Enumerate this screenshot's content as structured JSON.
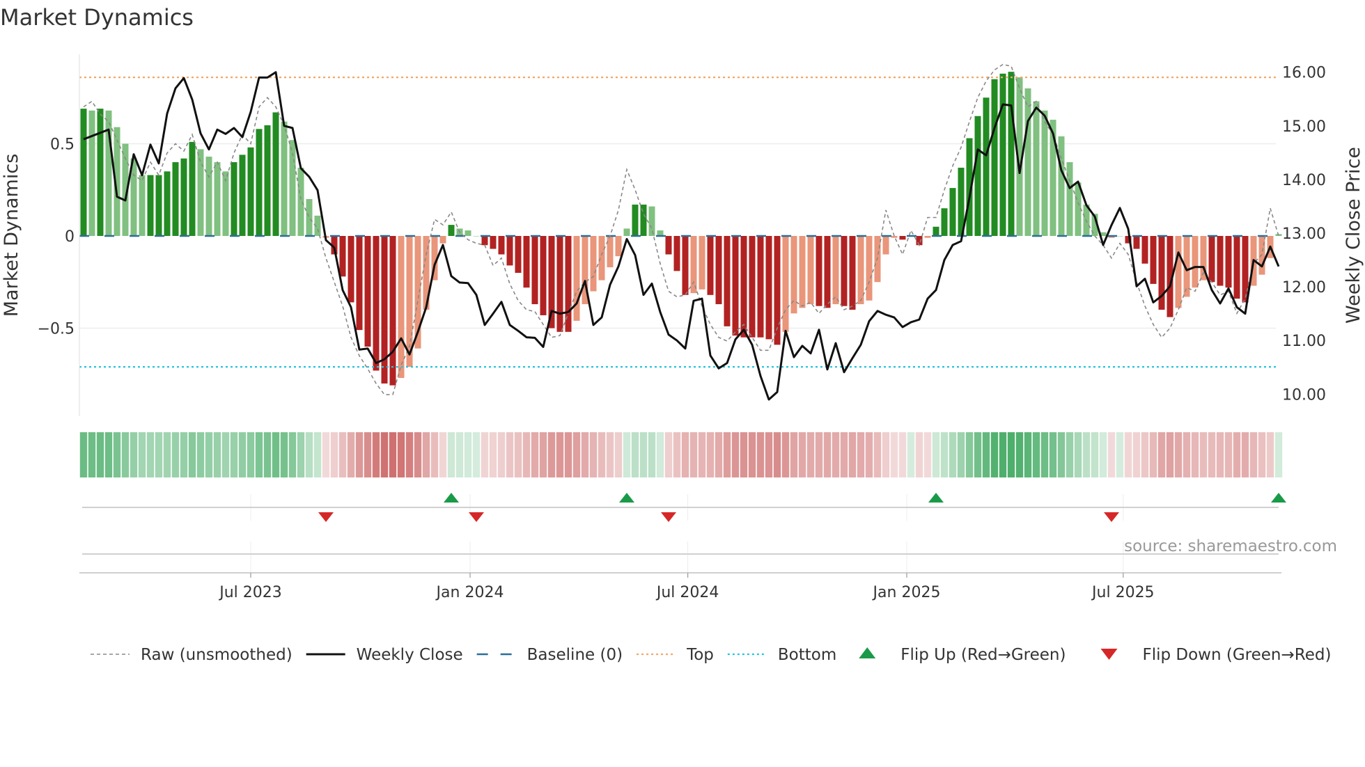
{
  "title": "Market Dynamics",
  "source": "source: sharemaestro.com",
  "colors": {
    "green_dark": "#228b22",
    "green_light": "#80c080",
    "red_dark": "#b22222",
    "red_light": "#e9967a",
    "heat_green": "#2ca050",
    "heat_red": "#c24a4a",
    "raw": "#888888",
    "close": "#111111",
    "baseline": "#2b6e99",
    "top": "#f0a868",
    "bottom": "#27c4dc",
    "flip_up": "#1a9a48",
    "flip_down": "#d62728"
  },
  "chart_data": {
    "type": "bar",
    "title": "Market Dynamics",
    "ylabel": "Market Dynamics",
    "y2label": "Weekly Close Price",
    "ylim": [
      -1.0,
      0.97
    ],
    "y2lim": [
      9.5,
      16.35
    ],
    "yticks": [
      {
        "v": 0.5,
        "label": "0.5"
      },
      {
        "v": 0,
        "label": "0"
      },
      {
        "v": -0.5,
        "label": "−0.5"
      }
    ],
    "y2ticks": [
      {
        "v": 16,
        "label": "16.00"
      },
      {
        "v": 15,
        "label": "15.00"
      },
      {
        "v": 14,
        "label": "14.00"
      },
      {
        "v": 13,
        "label": "13.00"
      },
      {
        "v": 12,
        "label": "12.00"
      },
      {
        "v": 11,
        "label": "11.00"
      },
      {
        "v": 10,
        "label": "10.00"
      }
    ],
    "xticks": [
      {
        "week": 20,
        "label": "Jul 2023"
      },
      {
        "week": 46.25,
        "label": "Jan 2024"
      },
      {
        "week": 72.3,
        "label": "Jul 2024"
      },
      {
        "week": 98.5,
        "label": "Jan 2025"
      },
      {
        "week": 124.4,
        "label": "Jul 2025"
      }
    ],
    "top_level": 0.86,
    "bottom_level": -0.71,
    "baseline": 0,
    "grid": true,
    "dynamics": [
      0.69,
      0.68,
      0.69,
      0.68,
      0.59,
      0.5,
      0.42,
      0.33,
      0.33,
      0.33,
      0.35,
      0.4,
      0.42,
      0.51,
      0.47,
      0.43,
      0.4,
      0.35,
      0.4,
      0.44,
      0.48,
      0.58,
      0.6,
      0.67,
      0.62,
      0.52,
      0.37,
      0.2,
      0.11,
      -0.01,
      -0.1,
      -0.22,
      -0.36,
      -0.51,
      -0.6,
      -0.73,
      -0.8,
      -0.81,
      -0.77,
      -0.71,
      -0.61,
      -0.4,
      -0.24,
      -0.04,
      0.06,
      0.04,
      0.03,
      0.0,
      -0.05,
      -0.07,
      -0.1,
      -0.16,
      -0.2,
      -0.28,
      -0.37,
      -0.43,
      -0.5,
      -0.52,
      -0.52,
      -0.46,
      -0.37,
      -0.3,
      -0.24,
      -0.17,
      -0.11,
      0.04,
      0.17,
      0.17,
      0.16,
      0.03,
      -0.1,
      -0.19,
      -0.32,
      -0.31,
      -0.29,
      -0.32,
      -0.37,
      -0.49,
      -0.54,
      -0.55,
      -0.55,
      -0.55,
      -0.56,
      -0.59,
      -0.52,
      -0.42,
      -0.39,
      -0.37,
      -0.38,
      -0.39,
      -0.37,
      -0.38,
      -0.4,
      -0.37,
      -0.35,
      -0.25,
      -0.1,
      -0.01,
      -0.02,
      0.0,
      -0.05,
      -0.01,
      0.05,
      0.15,
      0.26,
      0.37,
      0.53,
      0.65,
      0.75,
      0.85,
      0.88,
      0.89,
      0.86,
      0.8,
      0.73,
      0.68,
      0.63,
      0.54,
      0.4,
      0.29,
      0.17,
      0.12,
      0.02,
      -0.01,
      0.0,
      -0.04,
      -0.07,
      -0.15,
      -0.26,
      -0.4,
      -0.44,
      -0.39,
      -0.33,
      -0.28,
      -0.24,
      -0.25,
      -0.27,
      -0.28,
      -0.34,
      -0.36,
      -0.27,
      -0.21,
      -0.12,
      0.01
    ],
    "raw": [
      0.7,
      0.73,
      0.66,
      0.62,
      0.52,
      0.42,
      0.33,
      0.3,
      0.4,
      0.33,
      0.45,
      0.5,
      0.46,
      0.55,
      0.4,
      0.32,
      0.4,
      0.3,
      0.45,
      0.55,
      0.5,
      0.7,
      0.75,
      0.7,
      0.6,
      0.45,
      0.2,
      0.1,
      0.04,
      -0.12,
      -0.25,
      -0.38,
      -0.55,
      -0.65,
      -0.72,
      -0.8,
      -0.86,
      -0.86,
      -0.7,
      -0.6,
      -0.35,
      -0.1,
      0.09,
      0.06,
      0.13,
      0.02,
      -0.02,
      -0.04,
      -0.05,
      -0.16,
      -0.12,
      -0.26,
      -0.35,
      -0.4,
      -0.41,
      -0.48,
      -0.55,
      -0.54,
      -0.42,
      -0.3,
      -0.25,
      -0.22,
      -0.1,
      0.0,
      0.14,
      0.36,
      0.25,
      0.12,
      0.04,
      -0.15,
      -0.3,
      -0.33,
      -0.32,
      -0.25,
      -0.38,
      -0.48,
      -0.55,
      -0.57,
      -0.52,
      -0.48,
      -0.55,
      -0.62,
      -0.62,
      -0.5,
      -0.4,
      -0.35,
      -0.38,
      -0.36,
      -0.42,
      -0.37,
      -0.33,
      -0.4,
      -0.38,
      -0.35,
      -0.25,
      -0.12,
      0.14,
      0.0,
      -0.1,
      0.03,
      -0.05,
      0.1,
      0.1,
      0.25,
      0.38,
      0.48,
      0.62,
      0.75,
      0.84,
      0.9,
      0.93,
      0.92,
      0.8,
      0.7,
      0.73,
      0.62,
      0.55,
      0.42,
      0.3,
      0.18,
      0.08,
      0.0,
      -0.05,
      -0.12,
      -0.04,
      -0.1,
      -0.25,
      -0.38,
      -0.48,
      -0.55,
      -0.5,
      -0.4,
      -0.28,
      -0.3,
      -0.2,
      -0.25,
      -0.32,
      -0.3,
      -0.42,
      -0.34,
      -0.15,
      -0.1,
      0.15,
      0.0
    ],
    "close": [
      14.75,
      14.81,
      14.87,
      14.93,
      13.68,
      13.61,
      14.47,
      14.08,
      14.65,
      14.3,
      15.23,
      15.7,
      15.89,
      15.49,
      14.86,
      14.56,
      14.93,
      14.85,
      14.96,
      14.79,
      15.26,
      15.9,
      15.9,
      16.0,
      15.0,
      14.96,
      14.21,
      14.05,
      13.8,
      12.87,
      12.73,
      11.94,
      11.62,
      10.83,
      10.85,
      10.58,
      10.65,
      10.79,
      11.04,
      10.74,
      11.16,
      11.62,
      12.41,
      12.78,
      12.2,
      12.08,
      12.07,
      11.85,
      11.29,
      11.5,
      11.72,
      11.29,
      11.18,
      11.06,
      11.05,
      10.88,
      11.55,
      11.5,
      11.53,
      11.69,
      12.11,
      11.29,
      11.43,
      12.04,
      12.38,
      12.89,
      12.59,
      11.85,
      12.06,
      11.53,
      11.11,
      11.0,
      10.85,
      11.74,
      11.78,
      10.72,
      10.48,
      10.58,
      11.02,
      11.2,
      10.92,
      10.34,
      9.9,
      10.04,
      11.18,
      10.69,
      10.9,
      10.76,
      11.2,
      10.46,
      10.95,
      10.41,
      10.67,
      10.92,
      11.36,
      11.55,
      11.48,
      11.43,
      11.25,
      11.34,
      11.39,
      11.78,
      11.94,
      12.5,
      12.78,
      12.85,
      13.66,
      14.56,
      14.45,
      14.96,
      15.4,
      15.38,
      14.12,
      15.09,
      15.34,
      15.19,
      14.86,
      14.17,
      13.84,
      13.96,
      13.52,
      13.31,
      12.78,
      13.15,
      13.47,
      13.08,
      12.01,
      12.15,
      11.71,
      11.83,
      12.01,
      12.64,
      12.31,
      12.37,
      12.37,
      11.94,
      11.69,
      11.97,
      11.62,
      11.5,
      12.5,
      12.38,
      12.75,
      12.38
    ],
    "flips_up_weeks": [
      44,
      65,
      102,
      143
    ],
    "flips_down_weeks": [
      29,
      47,
      70,
      123
    ],
    "legend_position": "bottom",
    "legend": [
      {
        "key": "raw",
        "label": "Raw (unsmoothed)"
      },
      {
        "key": "close",
        "label": "Weekly Close"
      },
      {
        "key": "baseline",
        "label": "Baseline (0)"
      },
      {
        "key": "top",
        "label": "Top"
      },
      {
        "key": "bottom",
        "label": "Bottom"
      },
      {
        "key": "flip_up",
        "label": "Flip Up (Red→Green)"
      },
      {
        "key": "flip_down",
        "label": "Flip Down (Green→Red)"
      }
    ]
  }
}
